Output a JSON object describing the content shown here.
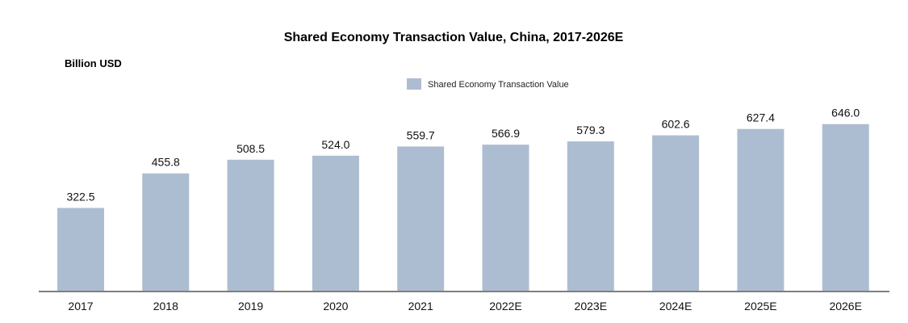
{
  "chart_data": {
    "type": "bar",
    "title": "Shared Economy Transaction Value, China, 2017-2026E",
    "unit_label": "Billion USD",
    "xlabel": "",
    "ylabel": "",
    "categories": [
      "2017",
      "2018",
      "2019",
      "2020",
      "2021",
      "2022E",
      "2023E",
      "2024E",
      "2025E",
      "2026E"
    ],
    "series": [
      {
        "name": "Shared Economy Transaction Value",
        "values": [
          322.5,
          455.8,
          508.5,
          524.0,
          559.7,
          566.9,
          579.3,
          602.6,
          627.4,
          646.0
        ],
        "color": "#adbdd1"
      }
    ],
    "value_labels": [
      "322.5",
      "455.8",
      "508.5",
      "524.0",
      "559.7",
      "566.9",
      "579.3",
      "602.6",
      "627.4",
      "646.0"
    ],
    "ylim": [
      0,
      700
    ],
    "grid": false,
    "legend_position": "top-center",
    "axis_color": "#7f7f7f"
  }
}
